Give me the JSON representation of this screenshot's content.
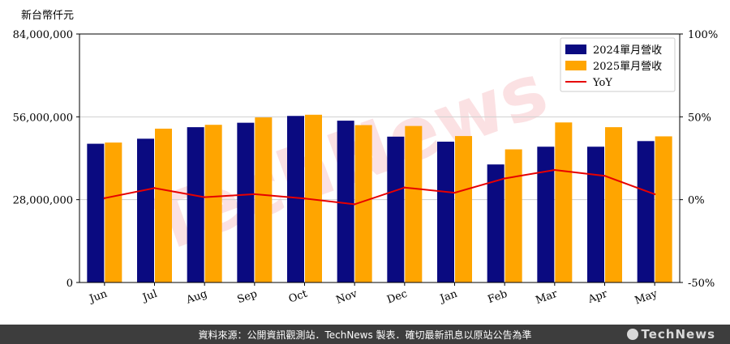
{
  "chart_data": {
    "type": "bar",
    "title": "",
    "ylabel": "新台幣仟元",
    "xlabel": "",
    "categories": [
      "Jun",
      "Jul",
      "Aug",
      "Sep",
      "Oct",
      "Nov",
      "Dec",
      "Jan",
      "Feb",
      "Mar",
      "Apr",
      "May"
    ],
    "series": [
      {
        "name": "2024單月營收",
        "color": "#0a0a80",
        "values": [
          46900000,
          48600000,
          52500000,
          54000000,
          56300000,
          54700000,
          49300000,
          47600000,
          39900000,
          45900000,
          45900000,
          47800000
        ]
      },
      {
        "name": "2025單月營收",
        "color": "#ffa500",
        "values": [
          47300000,
          52000000,
          53300000,
          55800000,
          56700000,
          53200000,
          52900000,
          49500000,
          45000000,
          54100000,
          52500000,
          49400000
        ]
      }
    ],
    "line_series": {
      "name": "YoY",
      "color": "#e60000",
      "axis": "right",
      "values": [
        0.9,
        7.0,
        1.5,
        3.3,
        0.7,
        -2.8,
        7.3,
        4.2,
        12.8,
        17.9,
        14.4,
        3.3
      ]
    },
    "ylim": [
      0,
      84000000
    ],
    "y_ticks": [
      "0",
      "28,000,000",
      "56,000,000",
      "84,000,000"
    ],
    "y_tick_values": [
      0,
      28000000,
      56000000,
      84000000
    ],
    "y2lim": [
      -50,
      100
    ],
    "y2_ticks": [
      "-50%",
      "0%",
      "50%",
      "100%"
    ],
    "y2_tick_values": [
      -50,
      0,
      50,
      100
    ],
    "grid": "horizontal",
    "legend": "top-right",
    "watermark": "TechNews"
  },
  "footer": {
    "source_text": "資料來源：公開資訊觀測站．TechNews 製表．確切最新訊息以原站公告為準",
    "logo": "TechNews"
  }
}
